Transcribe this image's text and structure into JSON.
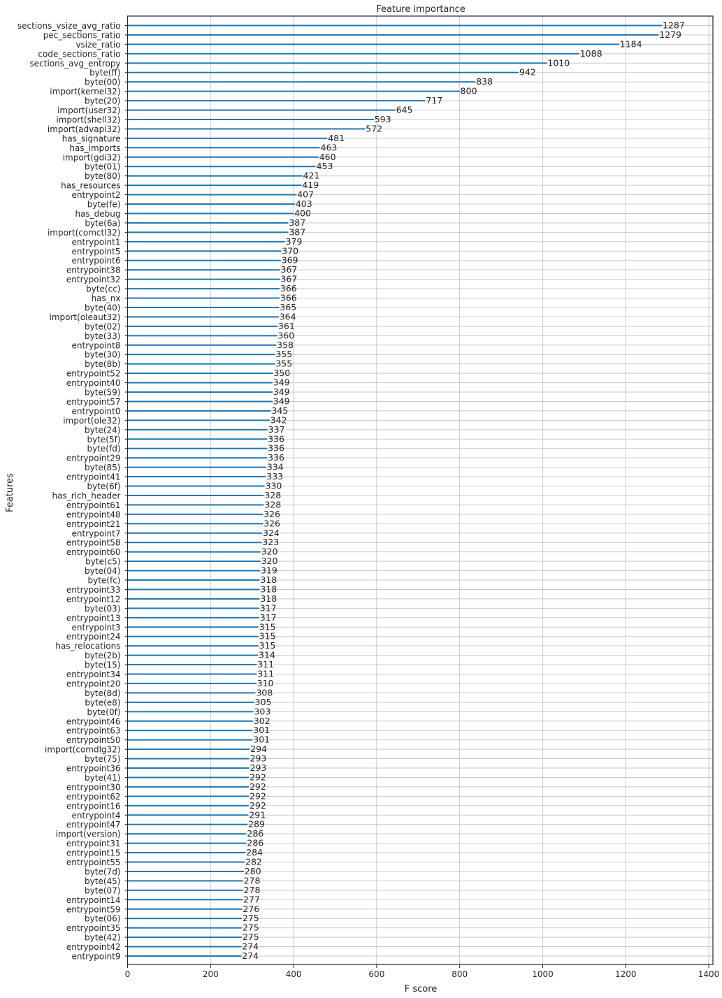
{
  "chart_data": {
    "type": "bar",
    "orientation": "horizontal",
    "title": "Feature importance",
    "xlabel": "F score",
    "ylabel": "Features",
    "xlim": [
      0,
      1410
    ],
    "xticks": [
      0,
      200,
      400,
      600,
      800,
      1000,
      1200,
      1400
    ],
    "grid": true,
    "colors": {
      "bar": "#1f77b4",
      "grid": "#c8c8c8",
      "text": "#262626"
    },
    "categories": [
      "sections_vsize_avg_ratio",
      "pec_sections_ratio",
      "vsize_ratio",
      "code_sections_ratio",
      "sections_avg_entropy",
      "byte(ff)",
      "byte(00)",
      "import(kernel32)",
      "byte(20)",
      "import(user32)",
      "import(shell32)",
      "import(advapi32)",
      "has_signature",
      "has_imports",
      "import(gdi32)",
      "byte(01)",
      "byte(80)",
      "has_resources",
      "entrypoint2",
      "byte(fe)",
      "has_debug",
      "byte(6a)",
      "import(comctl32)",
      "entrypoint1",
      "entrypoint5",
      "entrypoint6",
      "entrypoint38",
      "entrypoint32",
      "byte(cc)",
      "has_nx",
      "byte(40)",
      "import(oleaut32)",
      "byte(02)",
      "byte(33)",
      "entrypoint8",
      "byte(30)",
      "byte(8b)",
      "entrypoint52",
      "entrypoint40",
      "byte(59)",
      "entrypoint57",
      "entrypoint0",
      "import(ole32)",
      "byte(24)",
      "byte(5f)",
      "byte(fd)",
      "entrypoint29",
      "byte(85)",
      "entrypoint41",
      "byte(6f)",
      "has_rich_header",
      "entrypoint61",
      "entrypoint48",
      "entrypoint21",
      "entrypoint7",
      "entrypoint58",
      "entrypoint60",
      "byte(c5)",
      "byte(04)",
      "byte(fc)",
      "entrypoint33",
      "entrypoint12",
      "byte(03)",
      "entrypoint13",
      "entrypoint3",
      "entrypoint24",
      "has_relocations",
      "byte(2b)",
      "byte(15)",
      "entrypoint34",
      "entrypoint20",
      "byte(8d)",
      "byte(e8)",
      "byte(0f)",
      "entrypoint46",
      "entrypoint63",
      "entrypoint50",
      "import(comdlg32)",
      "byte(75)",
      "entrypoint36",
      "byte(41)",
      "entrypoint30",
      "entrypoint62",
      "entrypoint16",
      "entrypoint4",
      "entrypoint47",
      "import(version)",
      "entrypoint31",
      "entrypoint15",
      "entrypoint55",
      "byte(7d)",
      "byte(45)",
      "byte(07)",
      "entrypoint14",
      "entrypoint59",
      "byte(06)",
      "entrypoint35",
      "byte(42)",
      "entrypoint42",
      "entrypoint9"
    ],
    "values": [
      1287,
      1279,
      1184,
      1088,
      1010,
      942,
      838,
      800,
      717,
      645,
      593,
      572,
      481,
      463,
      460,
      453,
      421,
      419,
      407,
      403,
      400,
      387,
      387,
      379,
      370,
      369,
      367,
      367,
      366,
      366,
      365,
      364,
      361,
      360,
      358,
      355,
      355,
      350,
      349,
      349,
      349,
      345,
      342,
      337,
      336,
      336,
      336,
      334,
      333,
      330,
      328,
      328,
      326,
      326,
      324,
      323,
      320,
      320,
      319,
      318,
      318,
      318,
      317,
      317,
      315,
      315,
      315,
      314,
      311,
      311,
      310,
      308,
      305,
      303,
      302,
      301,
      301,
      294,
      293,
      293,
      292,
      292,
      292,
      292,
      291,
      289,
      286,
      286,
      284,
      282,
      280,
      278,
      278,
      277,
      276,
      275,
      275,
      275,
      274,
      274
    ]
  }
}
